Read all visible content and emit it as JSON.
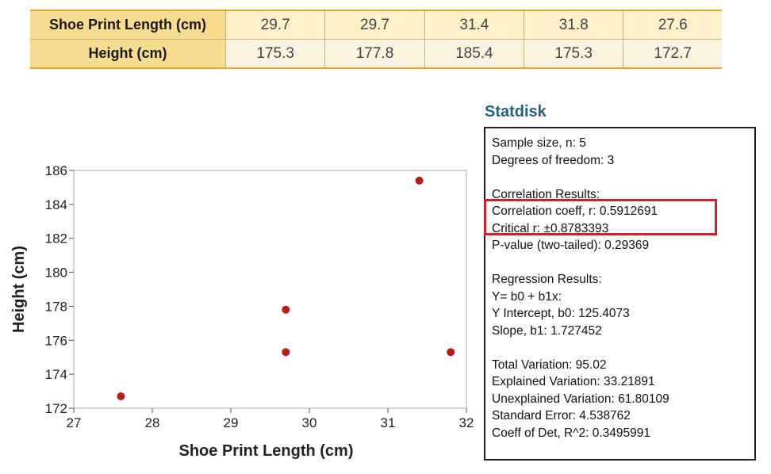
{
  "table": {
    "rows": [
      {
        "label": "Shoe Print Length (cm)",
        "values": [
          "29.7",
          "29.7",
          "31.4",
          "31.8",
          "27.6"
        ]
      },
      {
        "label": "Height (cm)",
        "values": [
          "175.3",
          "177.8",
          "185.4",
          "175.3",
          "172.7"
        ]
      }
    ]
  },
  "chart_data": {
    "type": "scatter",
    "xlabel": "Shoe Print Length (cm)",
    "ylabel": "Height (cm)",
    "xlim": [
      27,
      32
    ],
    "ylim": [
      172,
      186
    ],
    "xticks": [
      27,
      28,
      29,
      30,
      31,
      32
    ],
    "yticks": [
      172,
      174,
      176,
      178,
      180,
      182,
      184,
      186
    ],
    "grid": false,
    "marker_color": "#b51c1c",
    "points": [
      {
        "x": 29.7,
        "y": 175.3
      },
      {
        "x": 29.7,
        "y": 177.8
      },
      {
        "x": 31.4,
        "y": 185.4
      },
      {
        "x": 31.8,
        "y": 175.3
      },
      {
        "x": 27.6,
        "y": 172.7
      }
    ]
  },
  "statdisk": {
    "title": "Statdisk",
    "lines": [
      "Sample size, n: 5",
      "Degrees of freedom: 3",
      "",
      "Correlation Results:",
      "Correlation coeff, r: 0.5912691",
      "Critical r: ±0.8783393",
      "P-value (two-tailed): 0.29369",
      "",
      "Regression Results:",
      "Y= b0 + b1x:",
      "Y Intercept, b0: 125.4073",
      "Slope, b1: 1.727452",
      "",
      "Total Variation: 95.02",
      "Explained Variation: 33.21891",
      "Unexplained Variation: 61.80109",
      "Standard Error: 4.538762",
      "Coeff of Det, R^2: 0.3495991"
    ],
    "highlight_color": "#d0202a"
  }
}
